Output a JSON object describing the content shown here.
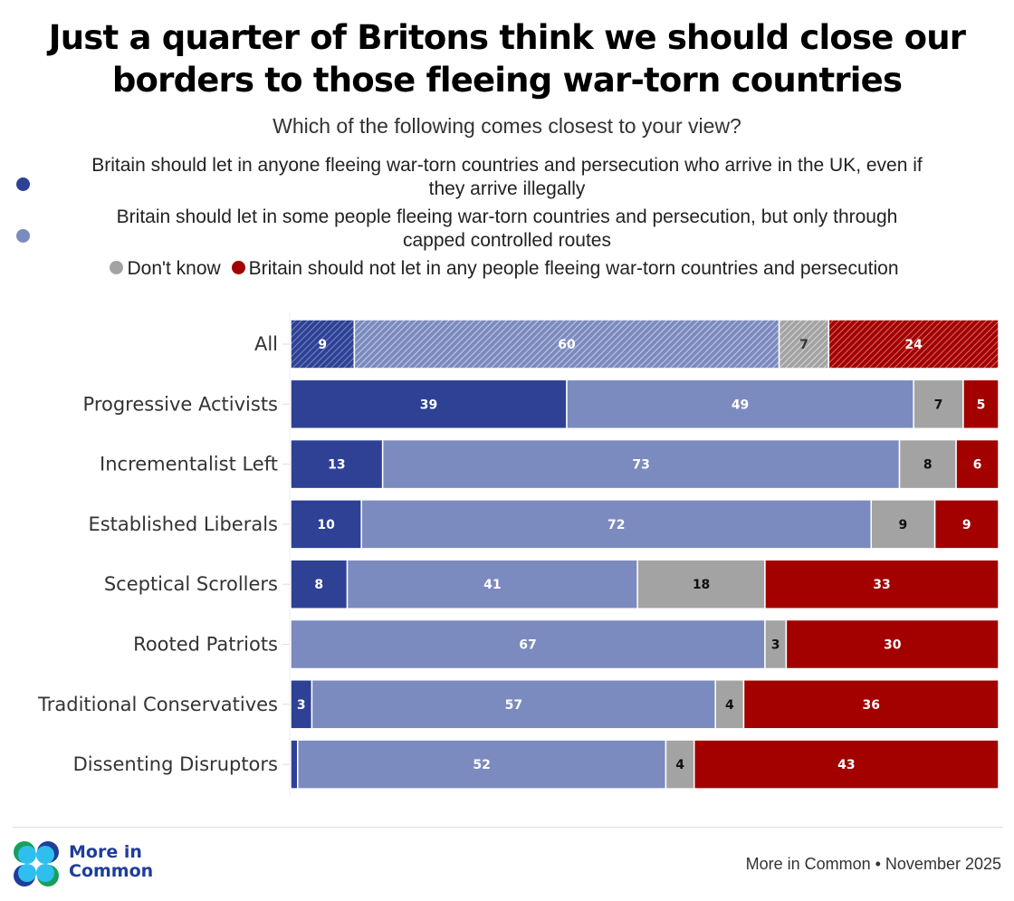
{
  "title_line1": "Just a quarter of Britons think we should close our",
  "title_line2": "borders to those fleeing war-torn countries",
  "subtitle": "Which of the following comes closest to your view?",
  "legend": {
    "items": [
      {
        "label_line1": "Britain should let in anyone fleeing war-torn countries and persecution who arrive in the UK, even if",
        "label_line2": "they arrive illegally",
        "color": "#2e4194"
      },
      {
        "label_line1": "Britain should let in some people fleeing war-torn countries and persecution, but only through",
        "label_line2": "capped controlled routes",
        "color": "#7b8bbf"
      },
      {
        "label": "Don't know",
        "color": "#a3a3a3"
      },
      {
        "label": "Britain should not let in any people fleeing war-torn countries and persecution",
        "color": "#a30000"
      }
    ]
  },
  "chart_data": {
    "type": "bar",
    "orientation": "horizontal",
    "stacked": true,
    "title": "Just a quarter of Britons think we should close our borders to those fleeing war-torn countries",
    "subtitle": "Which of the following comes closest to your view?",
    "xlabel": "",
    "ylabel": "",
    "xlim": [
      0,
      100
    ],
    "grid": false,
    "legend_position": "top",
    "categories": [
      "All",
      "Progressive Activists",
      "Incrementalist Left",
      "Established Liberals",
      "Sceptical Scrollers",
      "Rooted Patriots",
      "Traditional Conservatives",
      "Dissenting Disruptors"
    ],
    "highlighted_category": "All",
    "series": [
      {
        "name": "Britain should let in anyone fleeing war-torn countries and persecution who arrive in the UK, even if they arrive illegally",
        "color": "#2e4194",
        "label_color": "#ffffff",
        "values": [
          9,
          39,
          13,
          10,
          8,
          0,
          3,
          1
        ],
        "labels": [
          "9",
          "39",
          "13",
          "10",
          "8",
          "",
          "3",
          ""
        ]
      },
      {
        "name": "Britain should let in some people fleeing war-torn countries and persecution, but only through capped controlled routes",
        "color": "#7b8bbf",
        "label_color": "#ffffff",
        "values": [
          60,
          49,
          73,
          72,
          41,
          67,
          57,
          52
        ],
        "labels": [
          "60",
          "49",
          "73",
          "72",
          "41",
          "67",
          "57",
          "52"
        ]
      },
      {
        "name": "Don't know",
        "color": "#a3a3a3",
        "label_color": "#111111",
        "values": [
          7,
          7,
          8,
          9,
          18,
          3,
          4,
          4
        ],
        "labels": [
          "7",
          "7",
          "8",
          "9",
          "18",
          "3",
          "4",
          "4"
        ]
      },
      {
        "name": "Britain should not let in any people fleeing war-torn countries and persecution",
        "color": "#a30000",
        "label_color": "#ffffff",
        "values": [
          24,
          5,
          6,
          9,
          33,
          30,
          36,
          43
        ],
        "labels": [
          "24",
          "5",
          "6",
          "9",
          "33",
          "30",
          "36",
          "43"
        ]
      }
    ]
  },
  "footer": {
    "logo_line1": "More in",
    "logo_line2": "Common",
    "source": "More in Common • November 2025"
  }
}
